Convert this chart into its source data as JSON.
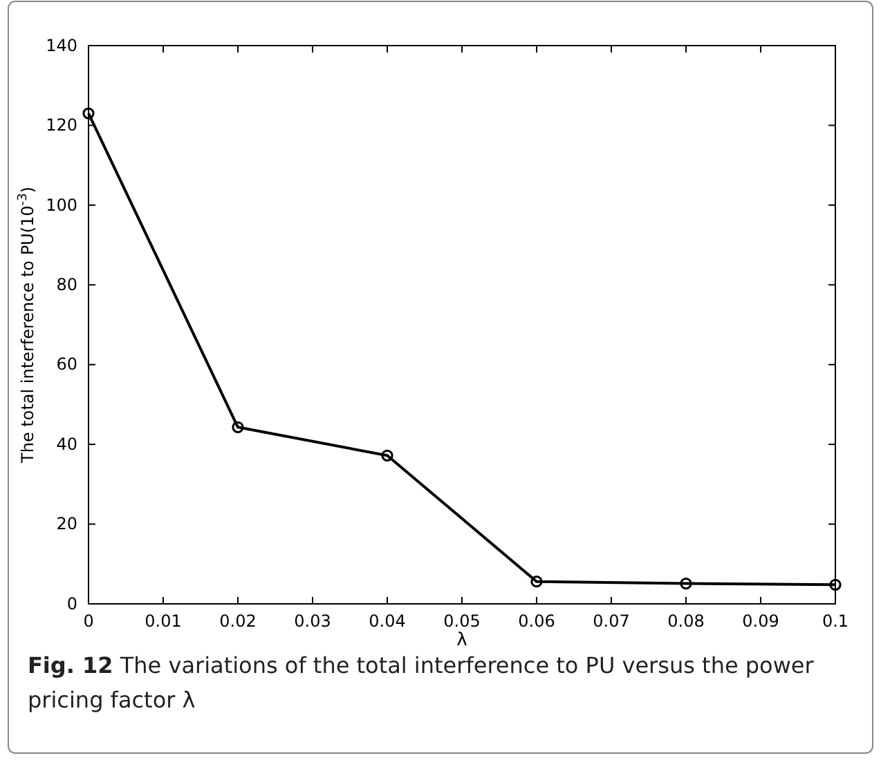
{
  "chart_data": {
    "type": "line",
    "xlabel": "λ",
    "ylabel": "The total interference to PU(10$^{-3}$)",
    "x": [
      0,
      0.02,
      0.04,
      0.06,
      0.08,
      0.1
    ],
    "series": [
      {
        "color": "#000000",
        "values": [
          123,
          44.3,
          37.2,
          5.6,
          5.1,
          4.8
        ]
      }
    ],
    "xlim": [
      0,
      0.1
    ],
    "xticks": [
      0,
      0.01,
      0.02,
      0.03,
      0.04,
      0.05,
      0.06,
      0.07,
      0.08,
      0.09,
      0.1
    ],
    "ylim": [
      0,
      140
    ],
    "yticks": [
      0,
      20,
      40,
      60,
      80,
      100,
      120,
      140
    ],
    "marker": "circle",
    "line_style": "solid",
    "grid": false,
    "annotations": [
      "Fig. 12 The variations of the total interference to PU versus the power pricing factor λ"
    ]
  }
}
